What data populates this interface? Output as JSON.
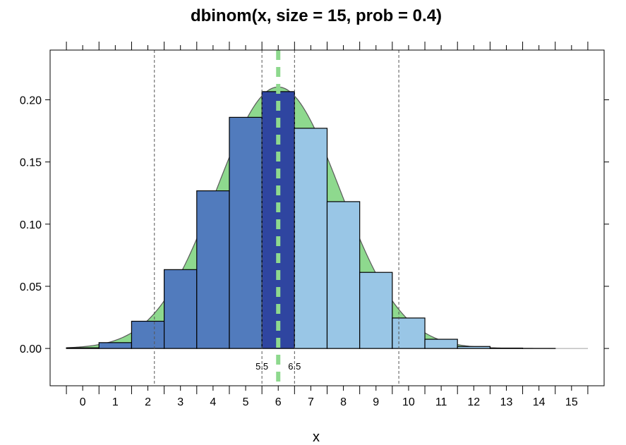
{
  "chart_data": {
    "type": "bar",
    "title": "dbinom(x, size = 15, prob = 0.4)",
    "xlabel": "x",
    "ylabel": "",
    "xlim": [
      -1,
      16
    ],
    "ylim": [
      -0.03,
      0.24
    ],
    "categories": [
      "0",
      "1",
      "2",
      "3",
      "4",
      "5",
      "6",
      "7",
      "8",
      "9",
      "10",
      "11",
      "12",
      "13",
      "14",
      "15"
    ],
    "x": [
      0,
      1,
      2,
      3,
      4,
      5,
      6,
      7,
      8,
      9,
      10,
      11,
      12,
      13,
      14,
      15
    ],
    "values": [
      0.0005,
      0.0047,
      0.0219,
      0.0634,
      0.1268,
      0.1859,
      0.2066,
      0.1771,
      0.1181,
      0.0612,
      0.0245,
      0.0074,
      0.0016,
      0.0003,
      3e-05,
      1e-06
    ],
    "y_ticks": [
      "0.00",
      "0.05",
      "0.10",
      "0.15",
      "0.20"
    ],
    "y_tick_values": [
      0,
      0.05,
      0.1,
      0.15,
      0.2
    ],
    "x_ticks": [
      "0",
      "1",
      "2",
      "3",
      "4",
      "5",
      "6",
      "7",
      "8",
      "9",
      "10",
      "11",
      "12",
      "13",
      "14",
      "15"
    ],
    "bar_colors": {
      "below": "#517bbd",
      "center": "#2f45a0",
      "above": "#99c6e6"
    },
    "normal_curve": {
      "mean": 6,
      "sd": 1.897,
      "fill": "#8ed98e",
      "stroke": "#5a5a5a"
    },
    "annotations": [
      {
        "label": "5.5",
        "x": 5.5
      },
      {
        "label": "6.5",
        "x": 6.5
      }
    ],
    "vertical_lines": [
      2.2,
      5.5,
      6.5,
      9.7
    ],
    "mean_line": {
      "x": 6,
      "color": "#8ed98e"
    },
    "grid": false
  }
}
